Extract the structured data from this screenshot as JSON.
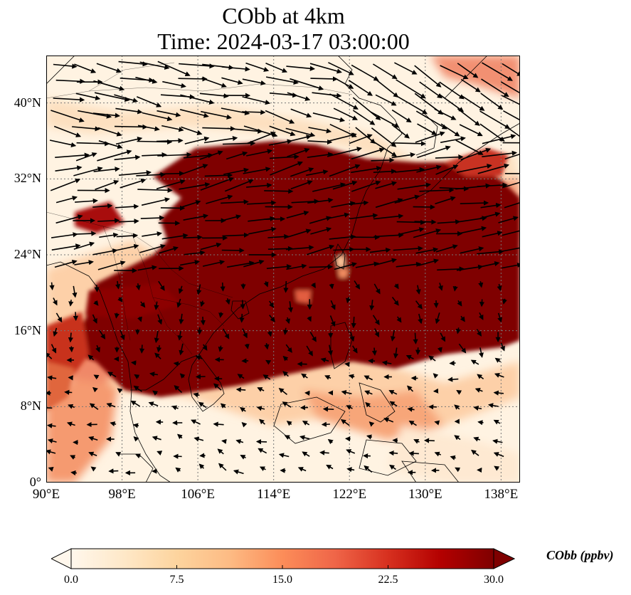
{
  "title": {
    "line1": "CObb at 4km",
    "line2": "Time: 2024-03-17 03:00:00"
  },
  "map": {
    "lon_range": [
      90,
      140
    ],
    "lat_range": [
      0,
      45
    ],
    "lat_ticks": [
      {
        "value": 0,
        "label": "0°"
      },
      {
        "value": 8,
        "label": "8°N"
      },
      {
        "value": 16,
        "label": "16°N"
      },
      {
        "value": 24,
        "label": "24°N"
      },
      {
        "value": 32,
        "label": "32°N"
      },
      {
        "value": 40,
        "label": "40°N"
      }
    ],
    "lon_ticks": [
      {
        "value": 90,
        "label": "90°E"
      },
      {
        "value": 98,
        "label": "98°E"
      },
      {
        "value": 106,
        "label": "106°E"
      },
      {
        "value": 114,
        "label": "114°E"
      },
      {
        "value": 122,
        "label": "122°E"
      },
      {
        "value": 130,
        "label": "130°E"
      },
      {
        "value": 138,
        "label": "138°E"
      }
    ],
    "gridlines": true,
    "colormap": "OrRd",
    "palette": [
      "#fff7ec",
      "#fee8c8",
      "#fdd49e",
      "#fdbb84",
      "#fc8d59",
      "#ef6548",
      "#d7301f",
      "#b30000",
      "#7f0000"
    ],
    "vectors": "wind arrows"
  },
  "colorbar": {
    "label": "CObb (ppbv)",
    "min": 0.0,
    "max": 30.0,
    "extend": "both",
    "ticks": [
      "0.0",
      "7.5",
      "15.0",
      "22.5",
      "30.0"
    ]
  }
}
